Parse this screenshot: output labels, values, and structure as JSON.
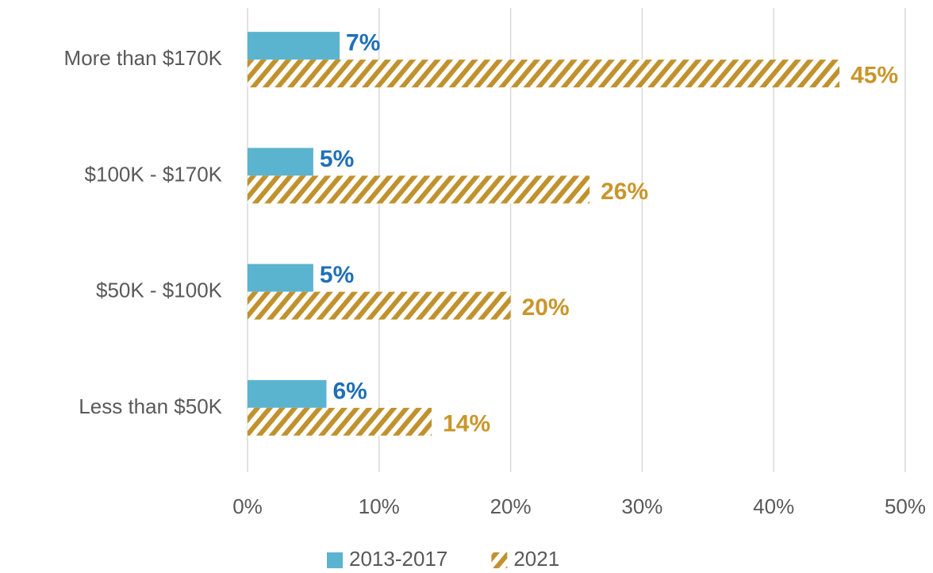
{
  "chart_data": {
    "type": "bar",
    "orientation": "horizontal",
    "categories": [
      "More than $170K",
      "$100K - $170K",
      "$50K - $100K",
      "Less than $50K"
    ],
    "series": [
      {
        "name": "2013-2017",
        "color": "#5ab4cf",
        "label_color": "#1f6fb8",
        "values": [
          7,
          5,
          5,
          6
        ],
        "value_labels": [
          "7%",
          "5%",
          "5%",
          "6%"
        ]
      },
      {
        "name": "2021",
        "color": "#c0922e",
        "label_color": "#c9962a",
        "pattern": "hatch",
        "values": [
          45,
          26,
          20,
          14
        ],
        "value_labels": [
          "45%",
          "26%",
          "20%",
          "14%"
        ]
      }
    ],
    "xlim": [
      0,
      50
    ],
    "xticks": [
      {
        "value": 0,
        "label": "0%"
      },
      {
        "value": 10,
        "label": "10%"
      },
      {
        "value": 20,
        "label": "20%"
      },
      {
        "value": 30,
        "label": "30%"
      },
      {
        "value": 40,
        "label": "40%"
      },
      {
        "value": 50,
        "label": "50%"
      }
    ],
    "grid": true,
    "legend": "bottom"
  }
}
